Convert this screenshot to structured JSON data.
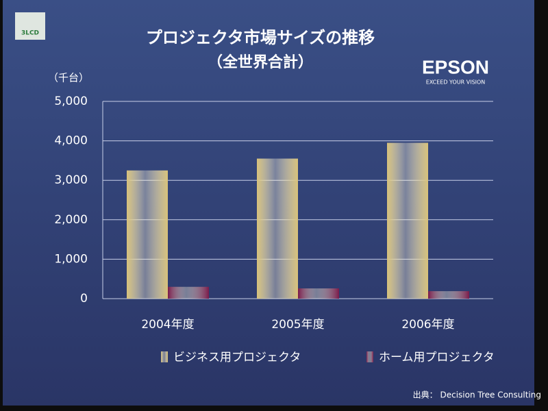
{
  "logos": {
    "badge": "3LCD",
    "brand": "EPSON",
    "tagline": "EXCEED YOUR VISION"
  },
  "chart_data": {
    "type": "bar",
    "title": "プロジェクタ市場サイズの推移",
    "subtitle": "（全世界合計）",
    "y_label": "（千台）",
    "categories": [
      "2004年度",
      "2005年度",
      "2006年度"
    ],
    "series": [
      {
        "name": "ビジネス用プロジェクタ",
        "color": "#d8c27a",
        "values": [
          3250,
          3550,
          3950
        ]
      },
      {
        "name": "ホーム用プロジェクタ",
        "color": "#7a1a4a",
        "values": [
          300,
          260,
          190
        ]
      }
    ],
    "ylim": [
      0,
      5000
    ],
    "yticks": [
      0,
      {
        "value": 1000,
        "label": "1,000"
      },
      {
        "value": 2000,
        "label": "2,000"
      },
      {
        "value": 3000,
        "label": "3,000"
      },
      {
        "value": 4000,
        "label": "4,000"
      },
      {
        "value": 5000,
        "label": "5,000"
      }
    ],
    "grid": true,
    "source": "出典： Decision Tree Consulting"
  }
}
